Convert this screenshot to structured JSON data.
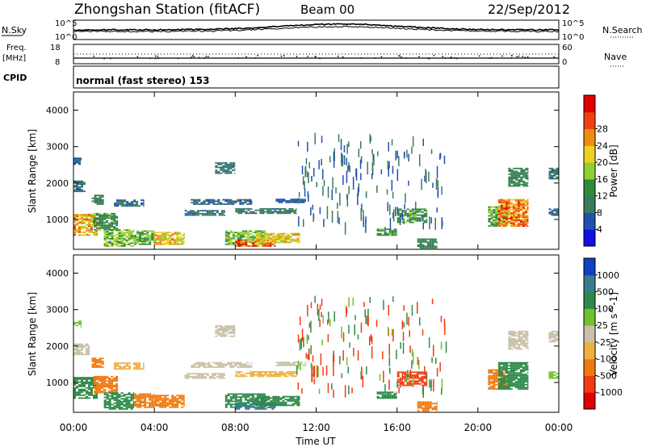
{
  "header": {
    "title": "Zhongshan Station (fitACF)",
    "beam": "Beam 00",
    "date": "22/Sep/2012"
  },
  "noise_panel": {
    "left_label": "N.Sky",
    "left_ticks": [
      "10^5",
      "10^0"
    ],
    "right_ticks": [
      "10^5",
      "10^0"
    ],
    "right_label": "N.Search"
  },
  "freq_panel": {
    "left_label_1": "Freq.",
    "left_label_2": "[MHz]",
    "left_ticks": [
      "18",
      "8"
    ],
    "right_ticks": [
      "60",
      "0"
    ],
    "right_label": "Nave",
    "cpid_label": "CPID",
    "mode_text": "normal (fast stereo) 153"
  },
  "axes": {
    "ylabel": "Slant Range [km]",
    "yticks": [
      "1000",
      "2000",
      "3000",
      "4000"
    ],
    "xlabel": "Time UT",
    "xticks": [
      "00:00",
      "04:00",
      "08:00",
      "12:00",
      "16:00",
      "20:00",
      "00:00"
    ]
  },
  "colors": {
    "power": [
      "#1010e0",
      "#2050b0",
      "#3a7a5e",
      "#2f8a3a",
      "#8fcf30",
      "#f0d020",
      "#f08a10",
      "#f04010",
      "#e00000"
    ],
    "velocity": [
      "#e00000",
      "#f03a10",
      "#f07a10",
      "#f0b040",
      "#c8c0a8",
      "#70c030",
      "#2f8a4a",
      "#3a7a8e",
      "#1040c0"
    ]
  },
  "chart_data": [
    {
      "type": "heatmap",
      "title": "",
      "xlabel": "Time UT",
      "ylabel": "Slant Range [km]",
      "xlim": [
        0,
        24
      ],
      "ylim": [
        180,
        4500
      ],
      "colorbar": {
        "label": "Power [dB]",
        "ticks": [
          "4",
          "8",
          "12",
          "16",
          "20",
          "24",
          "28"
        ],
        "range": [
          0,
          30
        ]
      },
      "patches": [
        {
          "t0": 0.0,
          "t1": 1.2,
          "r0": 550,
          "r1": 1150,
          "value": 20
        },
        {
          "t0": 0.0,
          "t1": 0.6,
          "r0": 1750,
          "r1": 2050,
          "value": 8
        },
        {
          "t0": 0.0,
          "t1": 0.4,
          "r0": 2500,
          "r1": 2700,
          "value": 6
        },
        {
          "t0": 0.9,
          "t1": 1.5,
          "r0": 1400,
          "r1": 1650,
          "value": 9
        },
        {
          "t0": 1.0,
          "t1": 2.2,
          "r0": 700,
          "r1": 1150,
          "value": 11
        },
        {
          "t0": 1.5,
          "t1": 3.0,
          "r0": 250,
          "r1": 700,
          "value": 14
        },
        {
          "t0": 2.0,
          "t1": 3.5,
          "r0": 1350,
          "r1": 1550,
          "value": 7
        },
        {
          "t0": 3.0,
          "t1": 4.0,
          "r0": 300,
          "r1": 700,
          "value": 13
        },
        {
          "t0": 4.0,
          "t1": 5.5,
          "r0": 300,
          "r1": 650,
          "value": 19
        },
        {
          "t0": 5.5,
          "t1": 7.5,
          "r0": 1100,
          "r1": 1250,
          "value": 8
        },
        {
          "t0": 5.8,
          "t1": 8.8,
          "r0": 1400,
          "r1": 1550,
          "value": 7
        },
        {
          "t0": 7.0,
          "t1": 8.0,
          "r0": 2250,
          "r1": 2550,
          "value": 8
        },
        {
          "t0": 7.5,
          "t1": 9.5,
          "r0": 300,
          "r1": 700,
          "value": 14
        },
        {
          "t0": 8.0,
          "t1": 10.0,
          "r0": 250,
          "r1": 450,
          "value": 24
        },
        {
          "t0": 9.0,
          "t1": 11.2,
          "r0": 350,
          "r1": 600,
          "value": 18
        },
        {
          "t0": 8.0,
          "t1": 11.0,
          "r0": 1150,
          "r1": 1300,
          "value": 8
        },
        {
          "t0": 10.0,
          "t1": 11.5,
          "r0": 1450,
          "r1": 1550,
          "value": 6
        },
        {
          "t0": 15.0,
          "t1": 16.0,
          "r0": 550,
          "r1": 750,
          "value": 12
        },
        {
          "t0": 16.0,
          "t1": 17.5,
          "r0": 900,
          "r1": 1300,
          "value": 12
        },
        {
          "t0": 17.0,
          "t1": 18.0,
          "r0": 200,
          "r1": 450,
          "value": 9
        },
        {
          "t0": 20.5,
          "t1": 21.5,
          "r0": 800,
          "r1": 1350,
          "value": 13
        },
        {
          "t0": 21.0,
          "t1": 22.5,
          "r0": 800,
          "r1": 1550,
          "value": 22
        },
        {
          "t0": 21.5,
          "t1": 22.5,
          "r0": 1900,
          "r1": 2400,
          "value": 9
        },
        {
          "t0": 23.5,
          "t1": 24.0,
          "r0": 2100,
          "r1": 2400,
          "value": 8
        },
        {
          "t0": 23.5,
          "t1": 24.0,
          "r0": 1100,
          "r1": 1300,
          "value": 6
        }
      ]
    },
    {
      "type": "heatmap",
      "title": "",
      "xlabel": "Time UT",
      "ylabel": "Slant Range [km]",
      "xlim": [
        0,
        24
      ],
      "ylim": [
        180,
        4500
      ],
      "colorbar": {
        "label": "Velocity [m s^-1]",
        "ticks": [
          "-1000",
          "-500",
          "-100",
          "-25",
          "25",
          "100",
          "500",
          "1000"
        ],
        "range": [
          -1200,
          1200
        ]
      },
      "patches": [
        {
          "t0": 0.0,
          "t1": 1.2,
          "r0": 550,
          "r1": 1150,
          "value": 120
        },
        {
          "t0": 0.0,
          "t1": 0.8,
          "r0": 1750,
          "r1": 2050,
          "value": 5
        },
        {
          "t0": 0.0,
          "t1": 0.4,
          "r0": 2500,
          "r1": 2700,
          "value": 60
        },
        {
          "t0": 0.9,
          "t1": 1.5,
          "r0": 1400,
          "r1": 1650,
          "value": -150
        },
        {
          "t0": 1.0,
          "t1": 2.2,
          "r0": 700,
          "r1": 1150,
          "value": -300
        },
        {
          "t0": 1.5,
          "t1": 3.0,
          "r0": 250,
          "r1": 700,
          "value": 150
        },
        {
          "t0": 2.0,
          "t1": 3.5,
          "r0": 1350,
          "r1": 1550,
          "value": -60
        },
        {
          "t0": 3.0,
          "t1": 4.0,
          "r0": 300,
          "r1": 700,
          "value": -400
        },
        {
          "t0": 4.0,
          "t1": 5.5,
          "r0": 300,
          "r1": 650,
          "value": -250
        },
        {
          "t0": 5.5,
          "t1": 7.5,
          "r0": 1100,
          "r1": 1250,
          "value": 10
        },
        {
          "t0": 5.8,
          "t1": 8.8,
          "r0": 1400,
          "r1": 1550,
          "value": 5
        },
        {
          "t0": 7.0,
          "t1": 8.0,
          "r0": 2250,
          "r1": 2550,
          "value": 8
        },
        {
          "t0": 7.5,
          "t1": 9.5,
          "r0": 300,
          "r1": 700,
          "value": 200
        },
        {
          "t0": 8.0,
          "t1": 10.0,
          "r0": 250,
          "r1": 450,
          "value": 600
        },
        {
          "t0": 9.0,
          "t1": 11.2,
          "r0": 350,
          "r1": 600,
          "value": 400
        },
        {
          "t0": 8.0,
          "t1": 11.0,
          "r0": 1150,
          "r1": 1300,
          "value": -40
        },
        {
          "t0": 10.0,
          "t1": 11.5,
          "r0": 1450,
          "r1": 1550,
          "value": 5
        },
        {
          "t0": 15.0,
          "t1": 16.0,
          "r0": 550,
          "r1": 750,
          "value": 150
        },
        {
          "t0": 16.0,
          "t1": 17.5,
          "r0": 900,
          "r1": 1300,
          "value": -800
        },
        {
          "t0": 17.0,
          "t1": 18.0,
          "r0": 200,
          "r1": 450,
          "value": -120
        },
        {
          "t0": 20.5,
          "t1": 21.5,
          "r0": 800,
          "r1": 1350,
          "value": -250
        },
        {
          "t0": 21.0,
          "t1": 22.5,
          "r0": 800,
          "r1": 1550,
          "value": 200
        },
        {
          "t0": 21.5,
          "t1": 22.5,
          "r0": 1900,
          "r1": 2400,
          "value": 5
        },
        {
          "t0": 23.5,
          "t1": 24.0,
          "r0": 2100,
          "r1": 2400,
          "value": 10
        },
        {
          "t0": 23.5,
          "t1": 24.0,
          "r0": 1100,
          "r1": 1300,
          "value": 50
        }
      ]
    }
  ]
}
